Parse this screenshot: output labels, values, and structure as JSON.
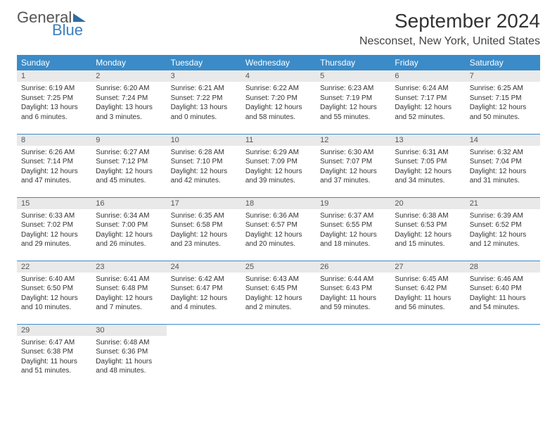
{
  "brand": {
    "line1": "General",
    "line2": "Blue"
  },
  "title": "September 2024",
  "location": "Nesconset, New York, United States",
  "day_headers": [
    "Sunday",
    "Monday",
    "Tuesday",
    "Wednesday",
    "Thursday",
    "Friday",
    "Saturday"
  ],
  "header_bg": "#3b8bc8",
  "header_fg": "#ffffff",
  "daynum_bg": "#e9e9e9",
  "border_color": "#3b8bc8",
  "weeks": [
    [
      {
        "n": "1",
        "sr": "Sunrise: 6:19 AM",
        "ss": "Sunset: 7:25 PM",
        "d1": "Daylight: 13 hours",
        "d2": "and 6 minutes."
      },
      {
        "n": "2",
        "sr": "Sunrise: 6:20 AM",
        "ss": "Sunset: 7:24 PM",
        "d1": "Daylight: 13 hours",
        "d2": "and 3 minutes."
      },
      {
        "n": "3",
        "sr": "Sunrise: 6:21 AM",
        "ss": "Sunset: 7:22 PM",
        "d1": "Daylight: 13 hours",
        "d2": "and 0 minutes."
      },
      {
        "n": "4",
        "sr": "Sunrise: 6:22 AM",
        "ss": "Sunset: 7:20 PM",
        "d1": "Daylight: 12 hours",
        "d2": "and 58 minutes."
      },
      {
        "n": "5",
        "sr": "Sunrise: 6:23 AM",
        "ss": "Sunset: 7:19 PM",
        "d1": "Daylight: 12 hours",
        "d2": "and 55 minutes."
      },
      {
        "n": "6",
        "sr": "Sunrise: 6:24 AM",
        "ss": "Sunset: 7:17 PM",
        "d1": "Daylight: 12 hours",
        "d2": "and 52 minutes."
      },
      {
        "n": "7",
        "sr": "Sunrise: 6:25 AM",
        "ss": "Sunset: 7:15 PM",
        "d1": "Daylight: 12 hours",
        "d2": "and 50 minutes."
      }
    ],
    [
      {
        "n": "8",
        "sr": "Sunrise: 6:26 AM",
        "ss": "Sunset: 7:14 PM",
        "d1": "Daylight: 12 hours",
        "d2": "and 47 minutes."
      },
      {
        "n": "9",
        "sr": "Sunrise: 6:27 AM",
        "ss": "Sunset: 7:12 PM",
        "d1": "Daylight: 12 hours",
        "d2": "and 45 minutes."
      },
      {
        "n": "10",
        "sr": "Sunrise: 6:28 AM",
        "ss": "Sunset: 7:10 PM",
        "d1": "Daylight: 12 hours",
        "d2": "and 42 minutes."
      },
      {
        "n": "11",
        "sr": "Sunrise: 6:29 AM",
        "ss": "Sunset: 7:09 PM",
        "d1": "Daylight: 12 hours",
        "d2": "and 39 minutes."
      },
      {
        "n": "12",
        "sr": "Sunrise: 6:30 AM",
        "ss": "Sunset: 7:07 PM",
        "d1": "Daylight: 12 hours",
        "d2": "and 37 minutes."
      },
      {
        "n": "13",
        "sr": "Sunrise: 6:31 AM",
        "ss": "Sunset: 7:05 PM",
        "d1": "Daylight: 12 hours",
        "d2": "and 34 minutes."
      },
      {
        "n": "14",
        "sr": "Sunrise: 6:32 AM",
        "ss": "Sunset: 7:04 PM",
        "d1": "Daylight: 12 hours",
        "d2": "and 31 minutes."
      }
    ],
    [
      {
        "n": "15",
        "sr": "Sunrise: 6:33 AM",
        "ss": "Sunset: 7:02 PM",
        "d1": "Daylight: 12 hours",
        "d2": "and 29 minutes."
      },
      {
        "n": "16",
        "sr": "Sunrise: 6:34 AM",
        "ss": "Sunset: 7:00 PM",
        "d1": "Daylight: 12 hours",
        "d2": "and 26 minutes."
      },
      {
        "n": "17",
        "sr": "Sunrise: 6:35 AM",
        "ss": "Sunset: 6:58 PM",
        "d1": "Daylight: 12 hours",
        "d2": "and 23 minutes."
      },
      {
        "n": "18",
        "sr": "Sunrise: 6:36 AM",
        "ss": "Sunset: 6:57 PM",
        "d1": "Daylight: 12 hours",
        "d2": "and 20 minutes."
      },
      {
        "n": "19",
        "sr": "Sunrise: 6:37 AM",
        "ss": "Sunset: 6:55 PM",
        "d1": "Daylight: 12 hours",
        "d2": "and 18 minutes."
      },
      {
        "n": "20",
        "sr": "Sunrise: 6:38 AM",
        "ss": "Sunset: 6:53 PM",
        "d1": "Daylight: 12 hours",
        "d2": "and 15 minutes."
      },
      {
        "n": "21",
        "sr": "Sunrise: 6:39 AM",
        "ss": "Sunset: 6:52 PM",
        "d1": "Daylight: 12 hours",
        "d2": "and 12 minutes."
      }
    ],
    [
      {
        "n": "22",
        "sr": "Sunrise: 6:40 AM",
        "ss": "Sunset: 6:50 PM",
        "d1": "Daylight: 12 hours",
        "d2": "and 10 minutes."
      },
      {
        "n": "23",
        "sr": "Sunrise: 6:41 AM",
        "ss": "Sunset: 6:48 PM",
        "d1": "Daylight: 12 hours",
        "d2": "and 7 minutes."
      },
      {
        "n": "24",
        "sr": "Sunrise: 6:42 AM",
        "ss": "Sunset: 6:47 PM",
        "d1": "Daylight: 12 hours",
        "d2": "and 4 minutes."
      },
      {
        "n": "25",
        "sr": "Sunrise: 6:43 AM",
        "ss": "Sunset: 6:45 PM",
        "d1": "Daylight: 12 hours",
        "d2": "and 2 minutes."
      },
      {
        "n": "26",
        "sr": "Sunrise: 6:44 AM",
        "ss": "Sunset: 6:43 PM",
        "d1": "Daylight: 11 hours",
        "d2": "and 59 minutes."
      },
      {
        "n": "27",
        "sr": "Sunrise: 6:45 AM",
        "ss": "Sunset: 6:42 PM",
        "d1": "Daylight: 11 hours",
        "d2": "and 56 minutes."
      },
      {
        "n": "28",
        "sr": "Sunrise: 6:46 AM",
        "ss": "Sunset: 6:40 PM",
        "d1": "Daylight: 11 hours",
        "d2": "and 54 minutes."
      }
    ],
    [
      {
        "n": "29",
        "sr": "Sunrise: 6:47 AM",
        "ss": "Sunset: 6:38 PM",
        "d1": "Daylight: 11 hours",
        "d2": "and 51 minutes."
      },
      {
        "n": "30",
        "sr": "Sunrise: 6:48 AM",
        "ss": "Sunset: 6:36 PM",
        "d1": "Daylight: 11 hours",
        "d2": "and 48 minutes."
      },
      null,
      null,
      null,
      null,
      null
    ]
  ]
}
